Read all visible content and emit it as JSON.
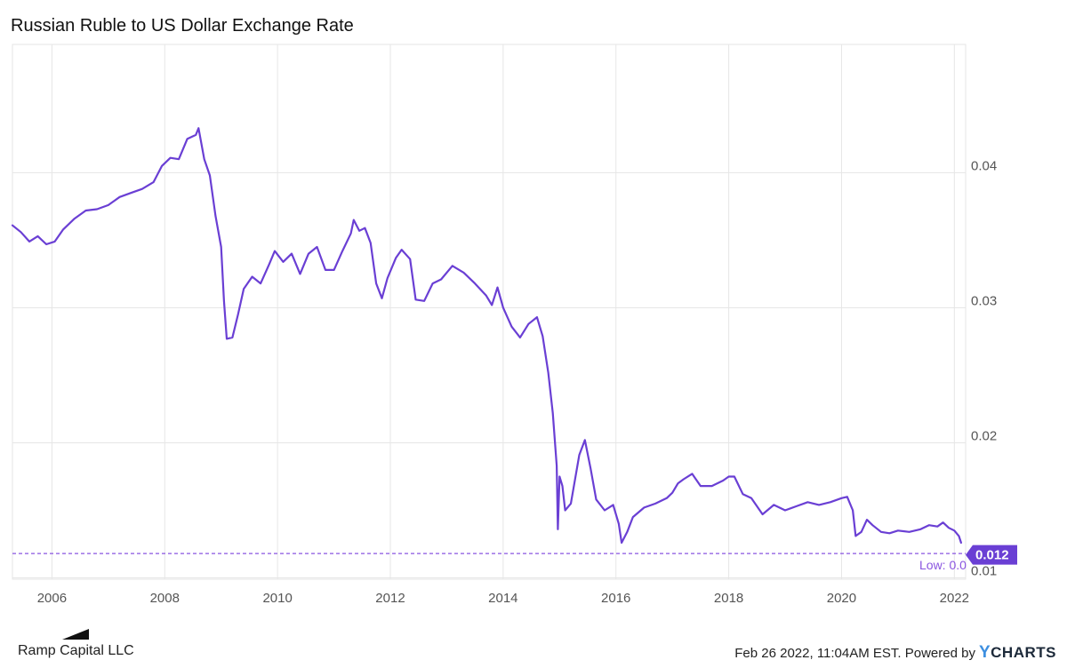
{
  "chart_data": {
    "type": "line",
    "title": "Russian Ruble to US Dollar Exchange Rate",
    "xlabel": "",
    "ylabel": "",
    "x_ticks": [
      "2006",
      "2008",
      "2010",
      "2012",
      "2014",
      "2016",
      "2018",
      "2020",
      "2022"
    ],
    "y_ticks": [
      "0.01",
      "0.02",
      "0.03",
      "0.04"
    ],
    "xlim": [
      2005.3,
      2022.2
    ],
    "ylim": [
      0.0099,
      0.0495
    ],
    "grid": true,
    "series": [
      {
        "name": "",
        "color": "#6a3fd4",
        "points": [
          [
            2005.3,
            0.0361
          ],
          [
            2005.45,
            0.0356
          ],
          [
            2005.6,
            0.0349
          ],
          [
            2005.75,
            0.0353
          ],
          [
            2005.9,
            0.0347
          ],
          [
            2006.05,
            0.0349
          ],
          [
            2006.2,
            0.0358
          ],
          [
            2006.4,
            0.0366
          ],
          [
            2006.6,
            0.0372
          ],
          [
            2006.8,
            0.0373
          ],
          [
            2007.0,
            0.0376
          ],
          [
            2007.2,
            0.0382
          ],
          [
            2007.4,
            0.0385
          ],
          [
            2007.6,
            0.0388
          ],
          [
            2007.8,
            0.0393
          ],
          [
            2007.95,
            0.0405
          ],
          [
            2008.1,
            0.0411
          ],
          [
            2008.25,
            0.041
          ],
          [
            2008.4,
            0.0425
          ],
          [
            2008.55,
            0.0428
          ],
          [
            2008.6,
            0.0433
          ],
          [
            2008.7,
            0.041
          ],
          [
            2008.8,
            0.0398
          ],
          [
            2008.9,
            0.0368
          ],
          [
            2009.0,
            0.0345
          ],
          [
            2009.05,
            0.0305
          ],
          [
            2009.1,
            0.0277
          ],
          [
            2009.2,
            0.0278
          ],
          [
            2009.3,
            0.0295
          ],
          [
            2009.4,
            0.0314
          ],
          [
            2009.55,
            0.0323
          ],
          [
            2009.7,
            0.0318
          ],
          [
            2009.85,
            0.0332
          ],
          [
            2009.95,
            0.0342
          ],
          [
            2010.1,
            0.0334
          ],
          [
            2010.25,
            0.034
          ],
          [
            2010.4,
            0.0325
          ],
          [
            2010.55,
            0.034
          ],
          [
            2010.7,
            0.0345
          ],
          [
            2010.85,
            0.0328
          ],
          [
            2011.0,
            0.0328
          ],
          [
            2011.15,
            0.0342
          ],
          [
            2011.3,
            0.0355
          ],
          [
            2011.35,
            0.0365
          ],
          [
            2011.45,
            0.0357
          ],
          [
            2011.55,
            0.0359
          ],
          [
            2011.65,
            0.0348
          ],
          [
            2011.75,
            0.0318
          ],
          [
            2011.85,
            0.0307
          ],
          [
            2011.95,
            0.0322
          ],
          [
            2012.1,
            0.0337
          ],
          [
            2012.2,
            0.0343
          ],
          [
            2012.35,
            0.0336
          ],
          [
            2012.45,
            0.0306
          ],
          [
            2012.6,
            0.0305
          ],
          [
            2012.75,
            0.0318
          ],
          [
            2012.9,
            0.0321
          ],
          [
            2013.1,
            0.0331
          ],
          [
            2013.3,
            0.0326
          ],
          [
            2013.5,
            0.0318
          ],
          [
            2013.7,
            0.0309
          ],
          [
            2013.8,
            0.0302
          ],
          [
            2013.9,
            0.0315
          ],
          [
            2014.0,
            0.03
          ],
          [
            2014.15,
            0.0286
          ],
          [
            2014.3,
            0.0278
          ],
          [
            2014.45,
            0.0288
          ],
          [
            2014.6,
            0.0293
          ],
          [
            2014.7,
            0.0279
          ],
          [
            2014.8,
            0.0252
          ],
          [
            2014.88,
            0.0222
          ],
          [
            2014.95,
            0.0183
          ],
          [
            2014.97,
            0.0136
          ],
          [
            2015.0,
            0.0175
          ],
          [
            2015.05,
            0.0168
          ],
          [
            2015.1,
            0.015
          ],
          [
            2015.2,
            0.0155
          ],
          [
            2015.35,
            0.0191
          ],
          [
            2015.45,
            0.0202
          ],
          [
            2015.55,
            0.0181
          ],
          [
            2015.65,
            0.0158
          ],
          [
            2015.8,
            0.015
          ],
          [
            2015.95,
            0.0154
          ],
          [
            2016.05,
            0.014
          ],
          [
            2016.1,
            0.0126
          ],
          [
            2016.2,
            0.0134
          ],
          [
            2016.3,
            0.0145
          ],
          [
            2016.5,
            0.0152
          ],
          [
            2016.7,
            0.0155
          ],
          [
            2016.9,
            0.0159
          ],
          [
            2017.0,
            0.0163
          ],
          [
            2017.1,
            0.017
          ],
          [
            2017.2,
            0.0173
          ],
          [
            2017.35,
            0.0177
          ],
          [
            2017.5,
            0.0168
          ],
          [
            2017.7,
            0.0168
          ],
          [
            2017.9,
            0.0172
          ],
          [
            2018.0,
            0.0175
          ],
          [
            2018.1,
            0.0175
          ],
          [
            2018.25,
            0.0162
          ],
          [
            2018.4,
            0.0159
          ],
          [
            2018.6,
            0.0147
          ],
          [
            2018.8,
            0.0154
          ],
          [
            2019.0,
            0.015
          ],
          [
            2019.2,
            0.0153
          ],
          [
            2019.4,
            0.0156
          ],
          [
            2019.6,
            0.0154
          ],
          [
            2019.8,
            0.0156
          ],
          [
            2020.0,
            0.0159
          ],
          [
            2020.1,
            0.016
          ],
          [
            2020.2,
            0.015
          ],
          [
            2020.25,
            0.0131
          ],
          [
            2020.35,
            0.0134
          ],
          [
            2020.45,
            0.0143
          ],
          [
            2020.55,
            0.0139
          ],
          [
            2020.7,
            0.0134
          ],
          [
            2020.85,
            0.0133
          ],
          [
            2021.0,
            0.0135
          ],
          [
            2021.2,
            0.0134
          ],
          [
            2021.4,
            0.0136
          ],
          [
            2021.55,
            0.0139
          ],
          [
            2021.7,
            0.0138
          ],
          [
            2021.8,
            0.0141
          ],
          [
            2021.9,
            0.0137
          ],
          [
            2022.0,
            0.0135
          ],
          [
            2022.08,
            0.0131
          ],
          [
            2022.12,
            0.0126
          ]
        ]
      }
    ],
    "low_line": {
      "value": 0.0118,
      "label": "Low: 0.0"
    },
    "current_value": {
      "value": 0.0117,
      "label": "0.012"
    }
  },
  "footer": {
    "brand": "Ramp Capital LLC",
    "timestamp": "Feb 26 2022, 11:04AM EST. Powered by",
    "ycharts_y": "Y",
    "ycharts_rest": "CHARTS"
  },
  "colors": {
    "line": "#6a3fd4",
    "low_line": "#8a55e0",
    "badge": "#6a3fd4",
    "grid": "#e6e6e6",
    "tick_text": "#555555"
  }
}
